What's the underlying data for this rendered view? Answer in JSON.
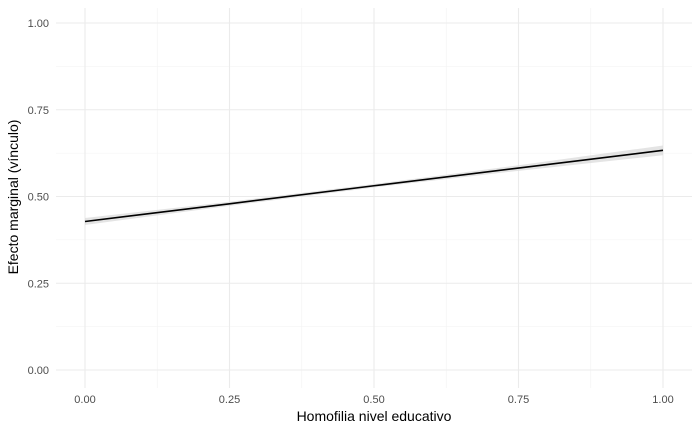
{
  "chart_data": {
    "type": "line",
    "title": "",
    "xlabel": "Homofilia nivel educativo",
    "ylabel": "Efecto marginal (vínculo)",
    "xlim": [
      0,
      1
    ],
    "ylim": [
      0,
      1
    ],
    "x_ticks": [
      0.0,
      0.25,
      0.5,
      0.75,
      1.0
    ],
    "x_tick_labels": [
      "0.00",
      "0.25",
      "0.50",
      "0.75",
      "1.00"
    ],
    "y_ticks": [
      0.0,
      0.25,
      0.5,
      0.75,
      1.0
    ],
    "y_tick_labels": [
      "0.00",
      "0.25",
      "0.50",
      "0.75",
      "1.00"
    ],
    "grid": true,
    "legend": "none",
    "series": [
      {
        "x": [
          0.0,
          0.25,
          0.5,
          0.75,
          1.0
        ],
        "y": [
          0.428,
          0.479,
          0.531,
          0.582,
          0.633
        ],
        "ci_low": [
          0.418,
          0.473,
          0.526,
          0.574,
          0.619
        ],
        "ci_high": [
          0.438,
          0.485,
          0.536,
          0.59,
          0.647
        ],
        "color": "#000000",
        "band_color": "#d9d9d9"
      }
    ]
  }
}
